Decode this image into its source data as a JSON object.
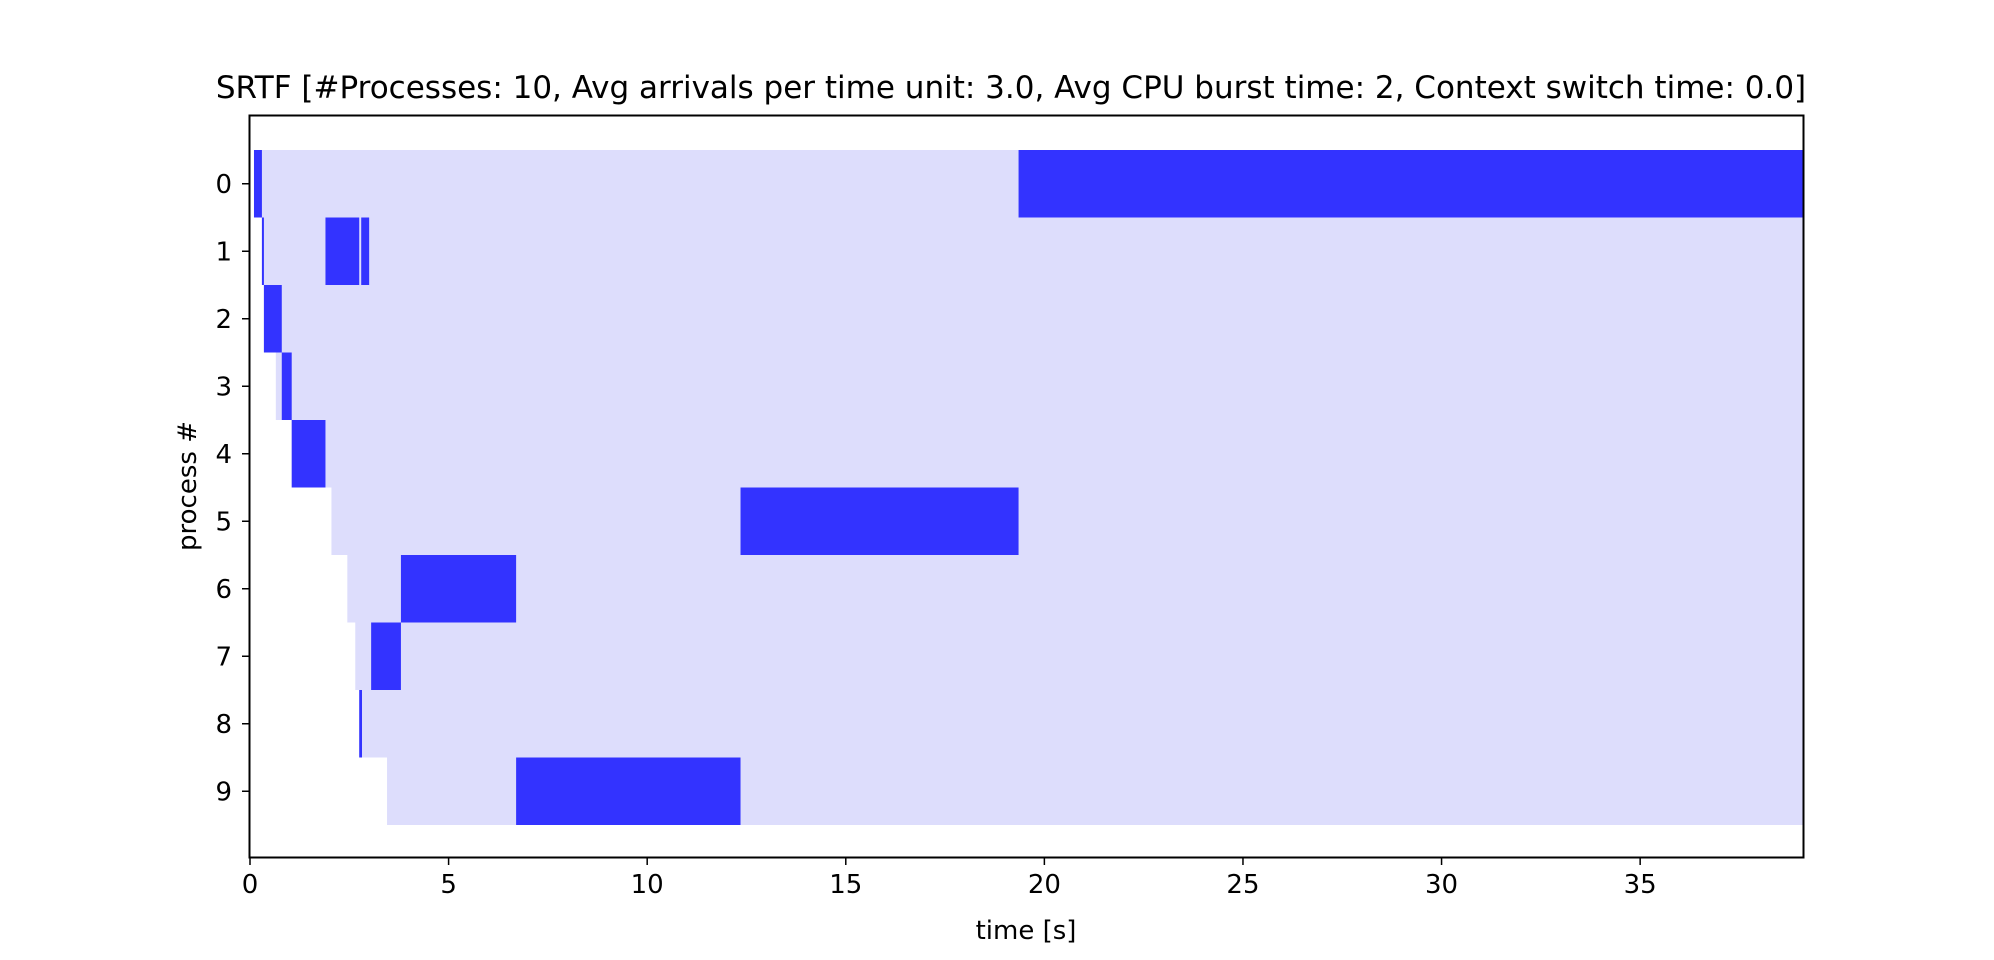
{
  "chart_data": {
    "type": "bar",
    "subtype": "gantt",
    "title": "SRTF [#Processes: 10, Avg arrivals per time unit: 3.0, Avg CPU burst time: 2, Context switch time: 0.0]",
    "xlabel": "time [s]",
    "ylabel": "process #",
    "xlim": [
      0,
      39.1
    ],
    "y_inverted": true,
    "grid": false,
    "legend": "none",
    "x_ticks": [
      0,
      5,
      10,
      15,
      20,
      25,
      30,
      35
    ],
    "y_ticks": [
      0,
      1,
      2,
      3,
      4,
      5,
      6,
      7,
      8,
      9
    ],
    "colors": {
      "waiting": "#ddddfc",
      "running": "#3333ff"
    },
    "processes": [
      {
        "id": 0,
        "arrival": 0.1,
        "running": [
          [
            0.1,
            0.3
          ],
          [
            19.35,
            39.1
          ]
        ]
      },
      {
        "id": 1,
        "arrival": 0.3,
        "running": [
          [
            0.3,
            0.35
          ],
          [
            1.9,
            2.75
          ],
          [
            2.8,
            3.0
          ]
        ]
      },
      {
        "id": 2,
        "arrival": 0.35,
        "running": [
          [
            0.35,
            0.8
          ]
        ]
      },
      {
        "id": 3,
        "arrival": 0.65,
        "running": [
          [
            0.8,
            1.05
          ]
        ]
      },
      {
        "id": 4,
        "arrival": 1.05,
        "running": [
          [
            1.05,
            1.9
          ]
        ]
      },
      {
        "id": 5,
        "arrival": 2.05,
        "running": [
          [
            12.35,
            19.35
          ]
        ]
      },
      {
        "id": 6,
        "arrival": 2.45,
        "running": [
          [
            3.8,
            6.7
          ]
        ]
      },
      {
        "id": 7,
        "arrival": 2.65,
        "running": [
          [
            3.05,
            3.8
          ]
        ]
      },
      {
        "id": 8,
        "arrival": 2.75,
        "running": [
          [
            2.75,
            2.82
          ]
        ]
      },
      {
        "id": 9,
        "arrival": 3.45,
        "running": [
          [
            6.7,
            12.35
          ]
        ]
      }
    ]
  }
}
